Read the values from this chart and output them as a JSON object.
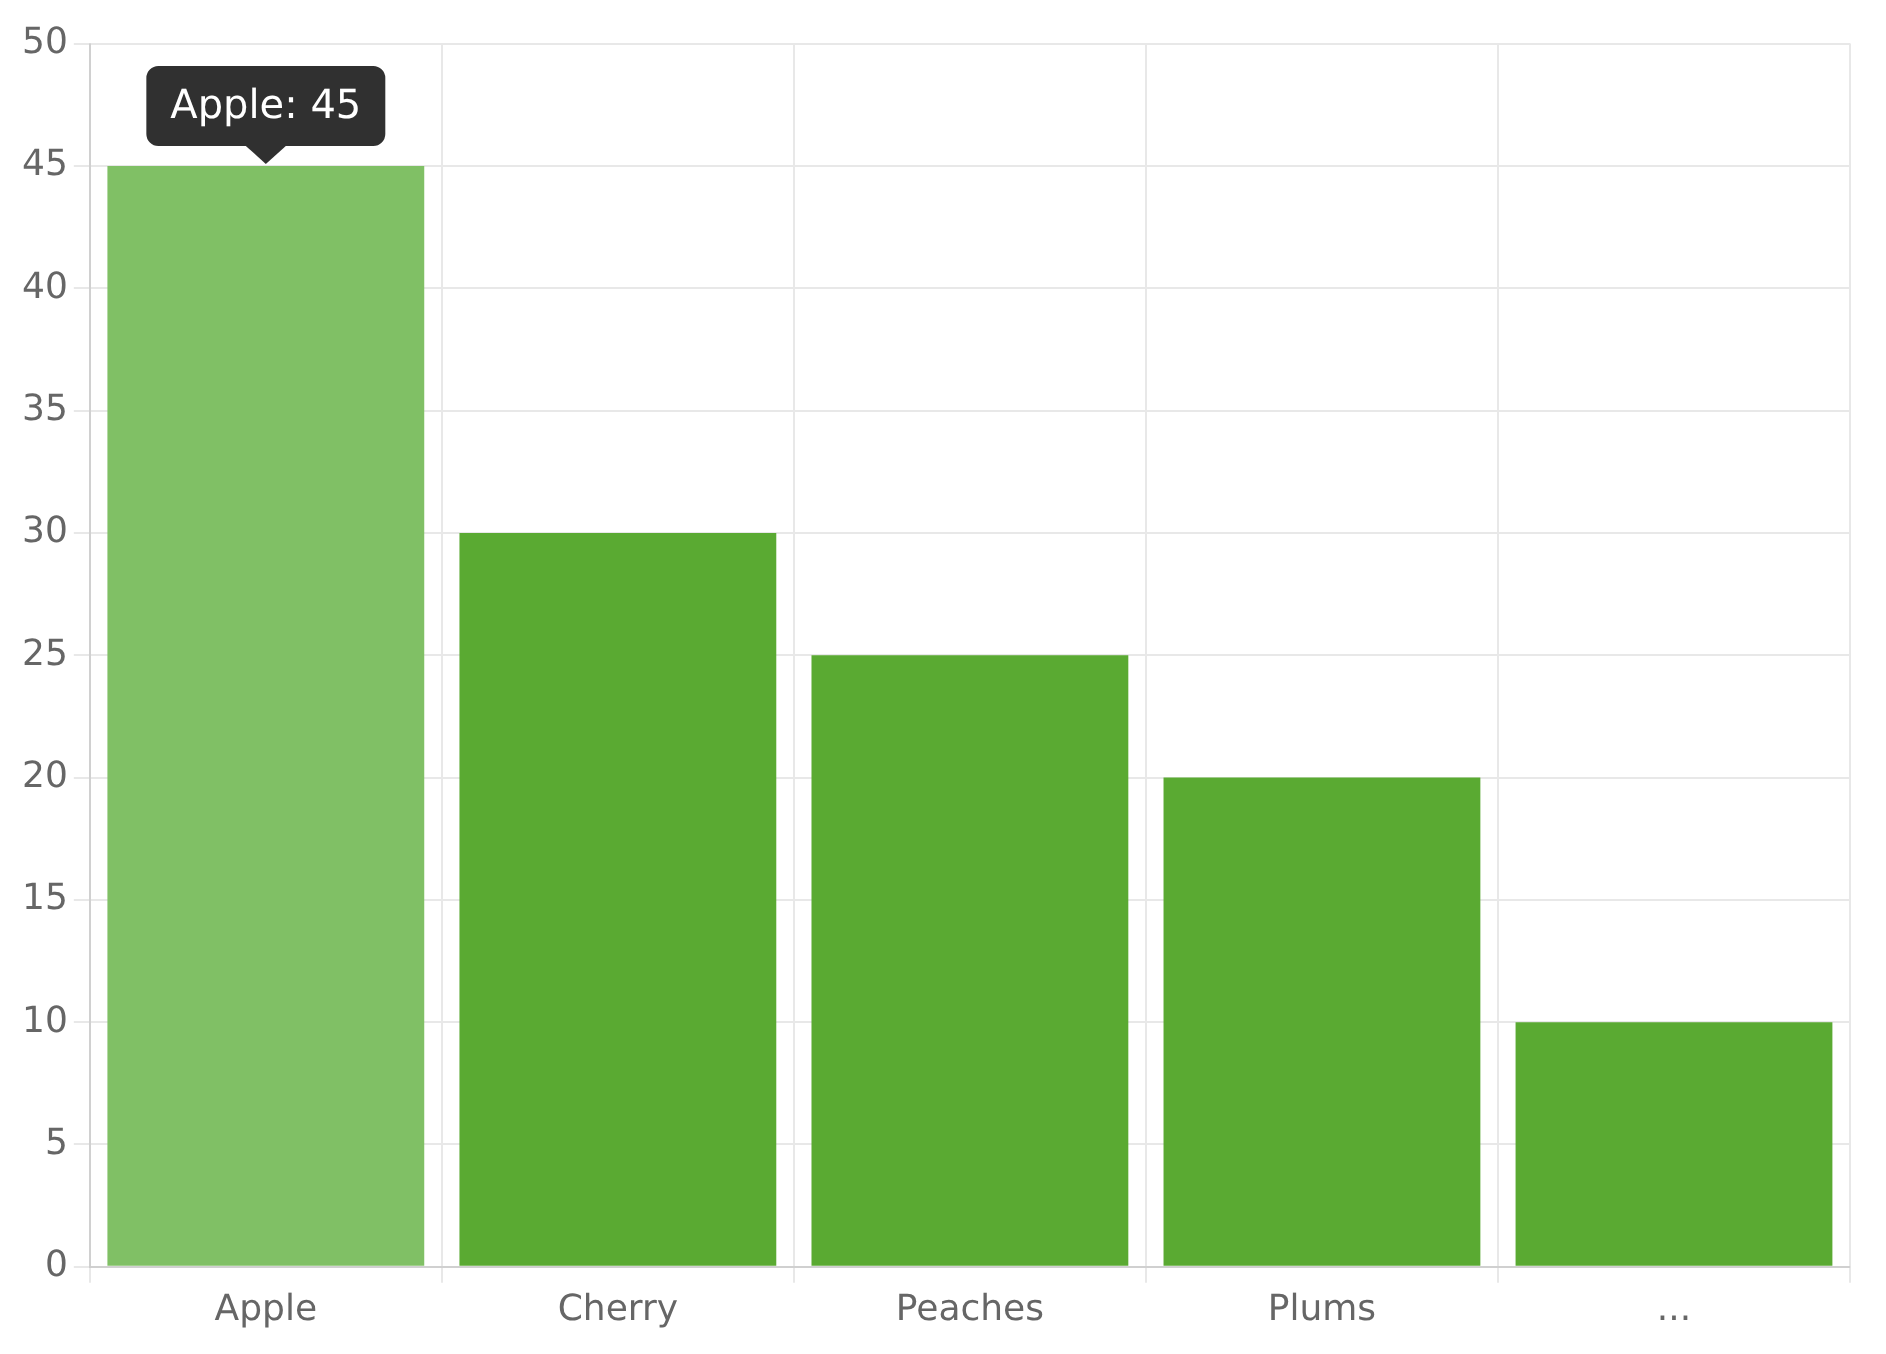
{
  "chart_data": {
    "type": "bar",
    "categories": [
      "Apple",
      "Cherry",
      "Peaches",
      "Plums",
      "..."
    ],
    "values": [
      45,
      30,
      25,
      20,
      10
    ],
    "colors": [
      "#80c065",
      "#5aaa32",
      "#5aaa32",
      "#5aaa32",
      "#5aaa32"
    ],
    "ylim": [
      0,
      50
    ],
    "yticks": [
      0,
      5,
      10,
      15,
      20,
      25,
      30,
      35,
      40,
      45,
      50
    ],
    "grid": true,
    "legend": false,
    "annotations": [
      {
        "text": "Apple: 45",
        "x": "Apple",
        "y": 45
      }
    ]
  }
}
